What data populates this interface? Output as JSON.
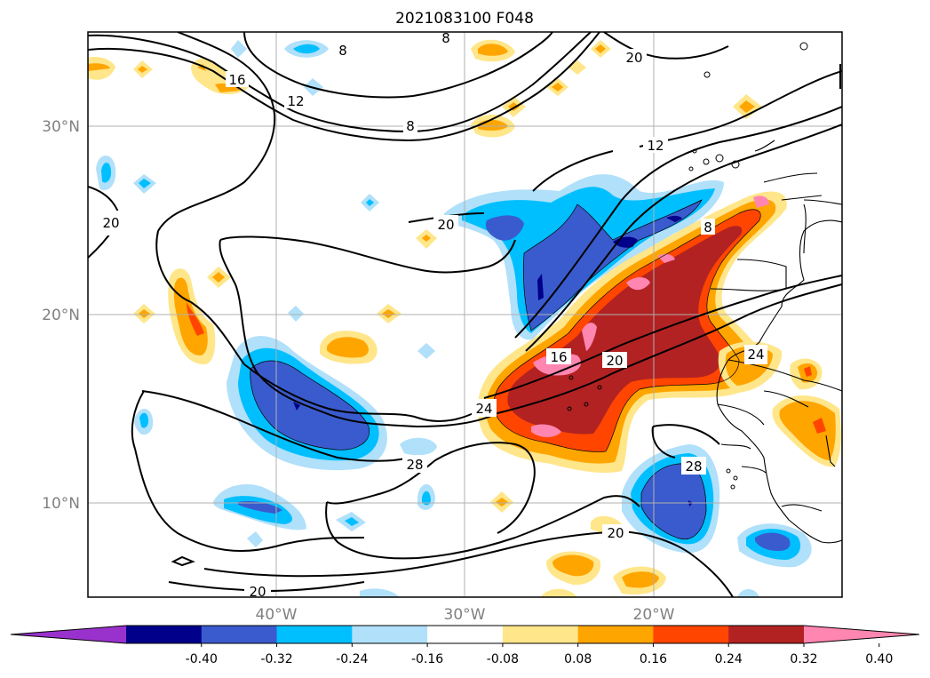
{
  "title": "2021083100 F048",
  "map": {
    "lat_labels": [
      "30°N",
      "20°N",
      "10°N"
    ],
    "lon_labels": [
      "40°W",
      "30°W",
      "20°W"
    ],
    "contour_labels": [
      "8",
      "8",
      "16",
      "12",
      "8",
      "20",
      "12",
      "20",
      "20",
      "8",
      "16",
      "20",
      "24",
      "24",
      "28",
      "28",
      "20",
      "20"
    ]
  },
  "colorbar": {
    "ticks": [
      "-0.40",
      "-0.32",
      "-0.24",
      "-0.16",
      "-0.08",
      "0.08",
      "0.16",
      "0.24",
      "0.32",
      "0.40"
    ],
    "colors": [
      "#9932cc",
      "#00008b",
      "#3a5bcd",
      "#00bfff",
      "#b0e0fa",
      "#ffffff",
      "#ffe68a",
      "#ffa500",
      "#ff4500",
      "#b22222",
      "#ff86b0"
    ]
  },
  "colors": {
    "grid": "#b0b0b0",
    "coast": "#000000"
  }
}
